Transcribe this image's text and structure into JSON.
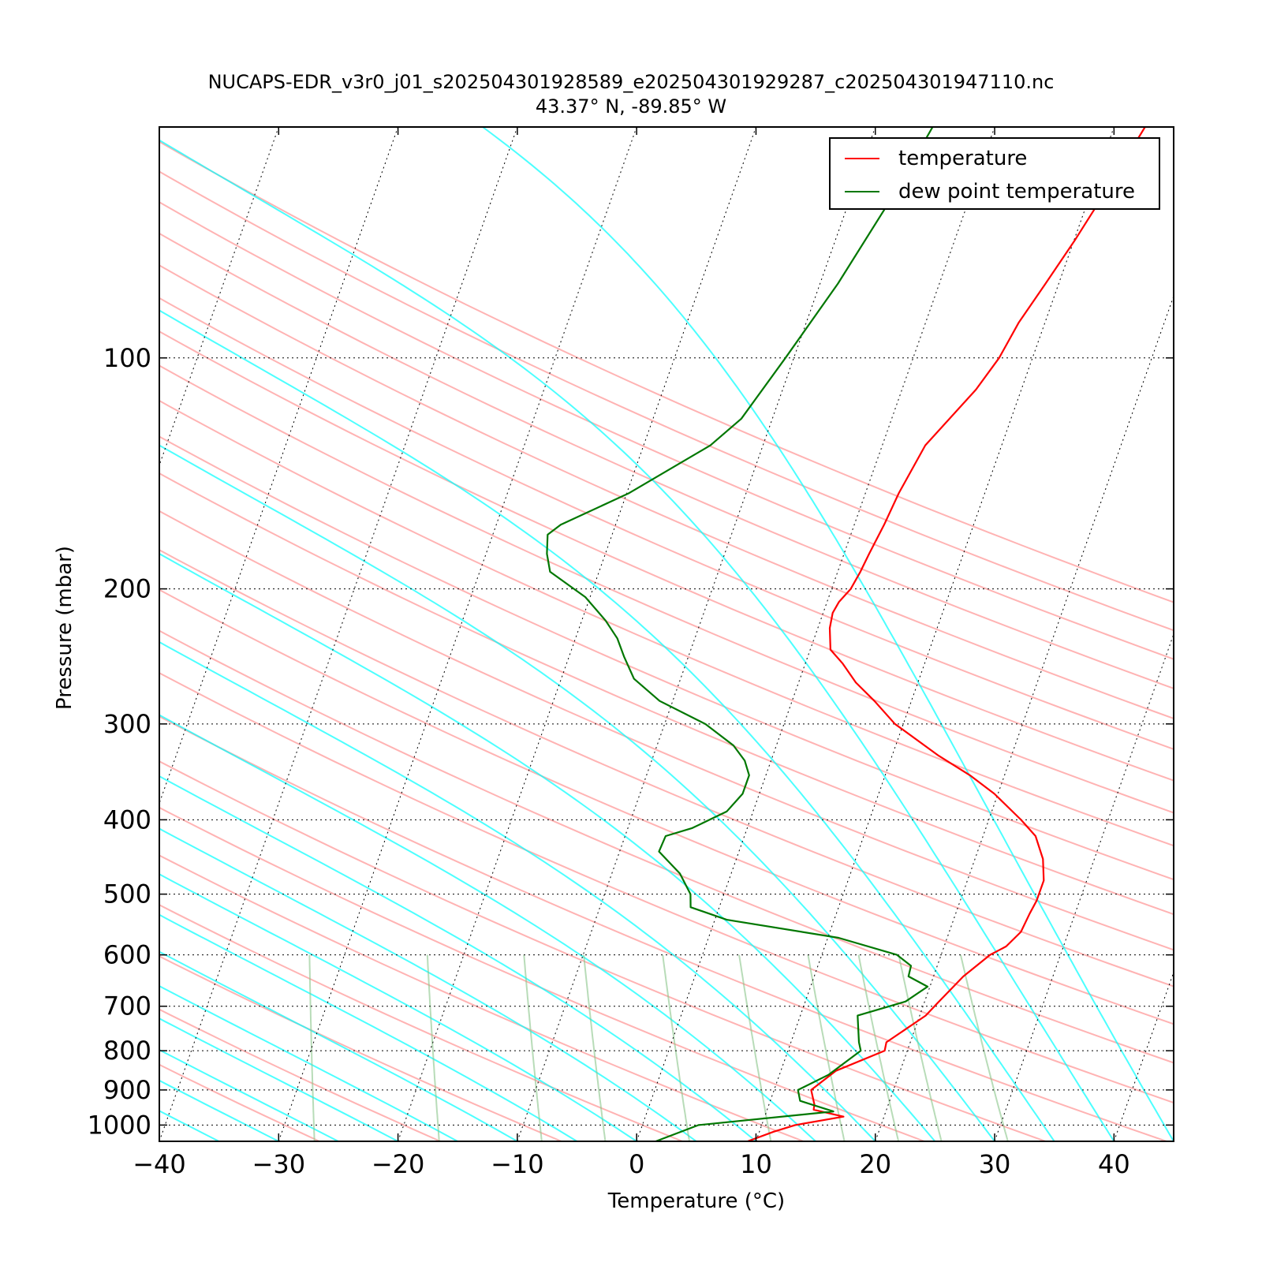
{
  "title": {
    "line1": "NUCAPS-EDR_v3r0_j01_s202504301928589_e202504301929287_c202504301947110.nc",
    "line2": "43.37° N, -89.85° W"
  },
  "colors": {
    "temperature": "#ff0000",
    "dewpoint": "#007700",
    "dry_adiabat": "#ff9999",
    "moist_adiabat": "#00ffff",
    "mixing_ratio": "#88c488",
    "isobar": "#000000",
    "isotherm": "#000000"
  },
  "chart_data": {
    "type": "skew-T log-P",
    "xlabel": "Temperature (°C)",
    "ylabel": "Pressure (mbar)",
    "xlim": [
      -40,
      45
    ],
    "ylim": [
      1050,
      50
    ],
    "y_scale": "log",
    "x_ticks": [
      -40,
      -30,
      -20,
      -10,
      0,
      10,
      20,
      30,
      40
    ],
    "x_tick_labels": [
      "−40",
      "−30",
      "−20",
      "−10",
      "0",
      "10",
      "20",
      "30",
      "40"
    ],
    "y_ticks": [
      1000,
      900,
      800,
      700,
      600,
      500,
      400,
      300,
      200,
      100
    ],
    "y_tick_labels": [
      "1000",
      "900",
      "800",
      "700",
      "600",
      "500",
      "400",
      "300",
      "200",
      "100"
    ],
    "legend_position": "top-right",
    "grid": "dotted isobars and skewed isotherms",
    "series": [
      {
        "name": "temperature",
        "pressure": [
          1050,
          1020,
          1000,
          975,
          955,
          940,
          900,
          850,
          800,
          780,
          720,
          690,
          640,
          600,
          585,
          560,
          530,
          510,
          480,
          450,
          420,
          400,
          370,
          350,
          330,
          300,
          280,
          265,
          250,
          240,
          225,
          215,
          208,
          200,
          190,
          180,
          165,
          150,
          130,
          110,
          100,
          90,
          80,
          70,
          60,
          50
        ],
        "temperature": [
          9.3,
          11.2,
          12.8,
          16.6,
          13.9,
          13.8,
          13.1,
          14.6,
          18.1,
          18.0,
          20.5,
          21.2,
          22.5,
          24.1,
          25.2,
          26.0,
          26.2,
          26.4,
          26.4,
          25.7,
          24.4,
          22.7,
          19.7,
          17.1,
          13.9,
          9.3,
          6.9,
          4.8,
          3.1,
          1.7,
          1.0,
          0.8,
          1.0,
          1.6,
          1.9,
          2.1,
          2.5,
          2.8,
          3.6,
          6.2,
          7.2,
          7.8,
          8.9,
          10.1,
          11.3,
          12.6
        ]
      },
      {
        "name": "dew point temperature",
        "pressure": [
          1050,
          1000,
          960,
          930,
          900,
          860,
          800,
          780,
          720,
          690,
          660,
          640,
          620,
          600,
          570,
          540,
          520,
          500,
          470,
          440,
          420,
          410,
          390,
          370,
          350,
          335,
          320,
          300,
          280,
          262,
          245,
          232,
          220,
          205,
          190,
          180,
          170,
          165,
          150,
          130,
          120,
          100,
          80,
          60,
          50
        ],
        "temperature": [
          1.6,
          4.7,
          15.6,
          12.5,
          12.0,
          14.1,
          16.1,
          15.7,
          14.8,
          18.4,
          19.8,
          17.9,
          17.8,
          16.3,
          10.9,
          1.0,
          -2.4,
          -2.8,
          -4.3,
          -6.7,
          -6.6,
          -4.6,
          -2.2,
          -1.4,
          -1.4,
          -2.2,
          -3.6,
          -6.6,
          -11.1,
          -13.9,
          -15.4,
          -16.5,
          -18.0,
          -20.4,
          -24.1,
          -24.9,
          -25.4,
          -24.6,
          -19.8,
          -14.4,
          -12.6,
          -10.7,
          -8.5,
          -6.3,
          -5.2
        ]
      }
    ]
  }
}
